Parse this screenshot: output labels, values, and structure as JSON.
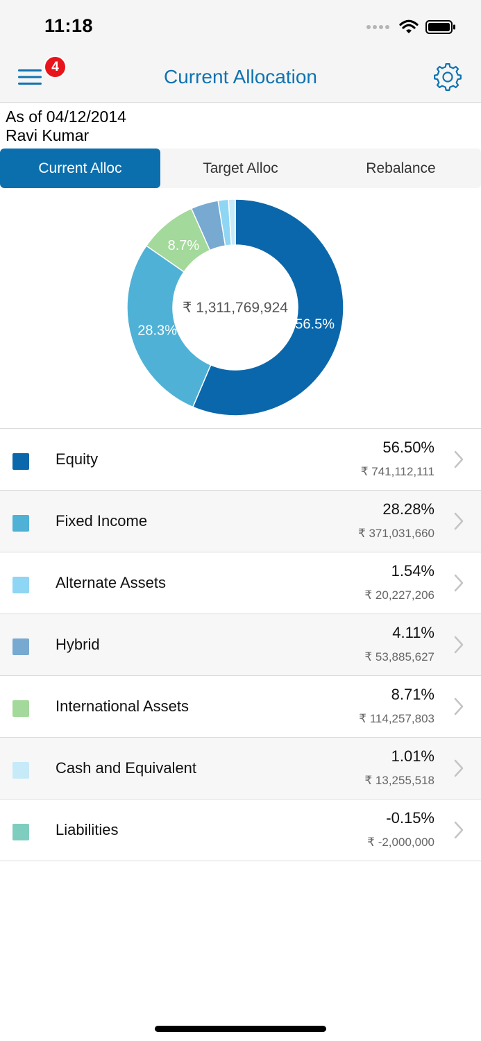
{
  "status_bar": {
    "time": "11:18"
  },
  "header": {
    "title": "Current Allocation",
    "badge_count": "4"
  },
  "as_of": {
    "date_line": "As of 04/12/2014",
    "client_name": "Ravi Kumar"
  },
  "tabs": [
    {
      "label": "Current Alloc",
      "active": true
    },
    {
      "label": "Target Alloc",
      "active": false
    },
    {
      "label": "Rebalance",
      "active": false
    }
  ],
  "chart_data": {
    "type": "pie",
    "center_label": "₹ 1,311,769,924",
    "slices": [
      {
        "name": "Equity",
        "value": 56.5,
        "color": "#0b67ab",
        "label": "56.5%"
      },
      {
        "name": "Fixed Income",
        "value": 28.28,
        "color": "#4fb1d6",
        "label": "28.3%"
      },
      {
        "name": "International Assets",
        "value": 8.71,
        "color": "#a3d99a",
        "label": "8.7%"
      },
      {
        "name": "Hybrid",
        "value": 4.11,
        "color": "#78a9d1",
        "label": ""
      },
      {
        "name": "Alternate Assets",
        "value": 1.54,
        "color": "#8ed6f3",
        "label": ""
      },
      {
        "name": "Cash and Equivalent",
        "value": 1.01,
        "color": "#c6eaf8",
        "label": ""
      }
    ]
  },
  "allocations": [
    {
      "name": "Equity",
      "percent": "56.50%",
      "amount": "₹ 741,112,111",
      "color": "#0b67ab"
    },
    {
      "name": "Fixed Income",
      "percent": "28.28%",
      "amount": "₹ 371,031,660",
      "color": "#4fb1d6"
    },
    {
      "name": "Alternate Assets",
      "percent": "1.54%",
      "amount": "₹ 20,227,206",
      "color": "#8ed6f3"
    },
    {
      "name": "Hybrid",
      "percent": "4.11%",
      "amount": "₹ 53,885,627",
      "color": "#78a9d1"
    },
    {
      "name": "International Assets",
      "percent": "8.71%",
      "amount": "₹ 114,257,803",
      "color": "#a3d99a"
    },
    {
      "name": "Cash and Equivalent",
      "percent": "1.01%",
      "amount": "₹ 13,255,518",
      "color": "#c6eaf8"
    },
    {
      "name": "Liabilities",
      "percent": "-0.15%",
      "amount": "₹ -2,000,000",
      "color": "#7fcdbf"
    }
  ],
  "colors": {
    "accent": "#0f73b1",
    "tab_active": "#0b6fae",
    "badge": "#e8141b"
  }
}
